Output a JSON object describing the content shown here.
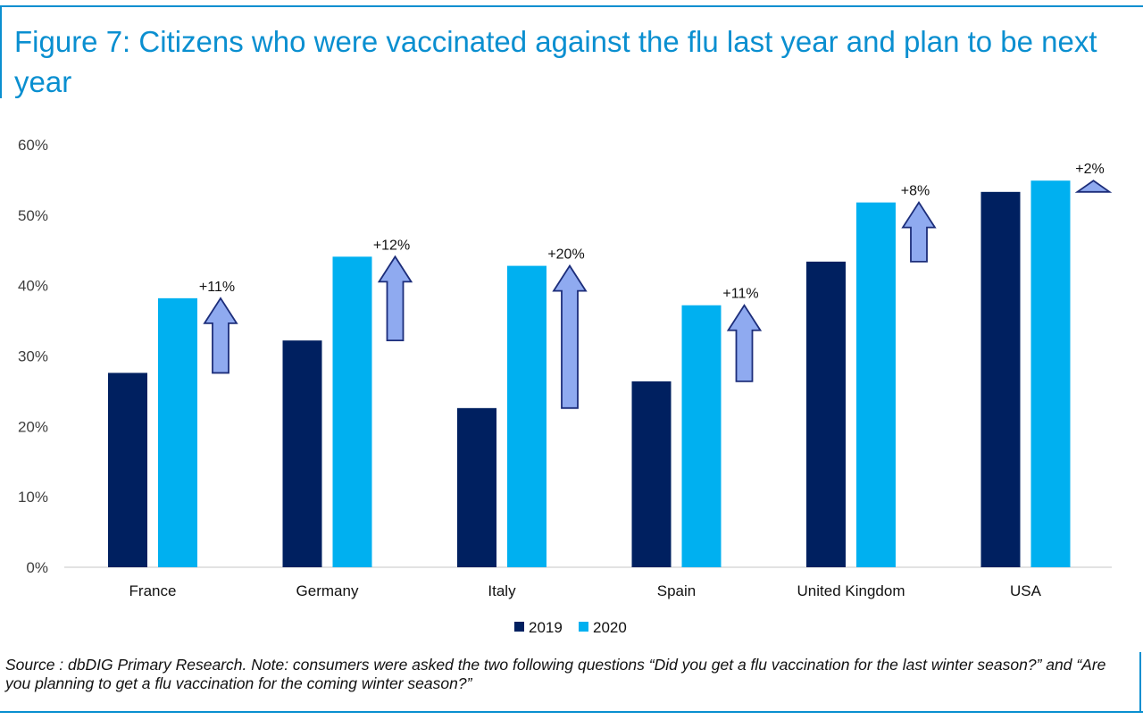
{
  "header": {
    "title": "Figure 7: Citizens who were vaccinated against the flu last year and plan to be next year"
  },
  "footer": {
    "source": "Source : dbDIG Primary Research. Note: consumers were asked the two following questions “Did you get a flu vaccination for the last winter season?” and “Are you planning to get a flu vaccination for the coming winter season?”"
  },
  "colors": {
    "series_2019": "#002060",
    "series_2020": "#00b0f0",
    "arrow_fill": "#8faaf0",
    "arrow_stroke": "#1c2d7a",
    "accent": "#0a8fd0"
  },
  "chart_data": {
    "type": "bar",
    "categories": [
      "France",
      "Germany",
      "Italy",
      "Spain",
      "United Kingdom",
      "USA"
    ],
    "series": [
      {
        "name": "2019",
        "values": [
          27.6,
          32.2,
          22.6,
          26.4,
          43.4,
          53.3
        ]
      },
      {
        "name": "2020",
        "values": [
          38.2,
          44.1,
          42.8,
          37.2,
          51.8,
          54.9
        ]
      }
    ],
    "change_labels": [
      "+11%",
      "+12%",
      "+20%",
      "+11%",
      "+8%",
      "+2%"
    ],
    "yticks": [
      "0%",
      "10%",
      "20%",
      "30%",
      "40%",
      "50%",
      "60%"
    ],
    "ylim": [
      0,
      60
    ],
    "legend": [
      "2019",
      "2020"
    ],
    "legend_position": "bottom",
    "grid": false
  }
}
